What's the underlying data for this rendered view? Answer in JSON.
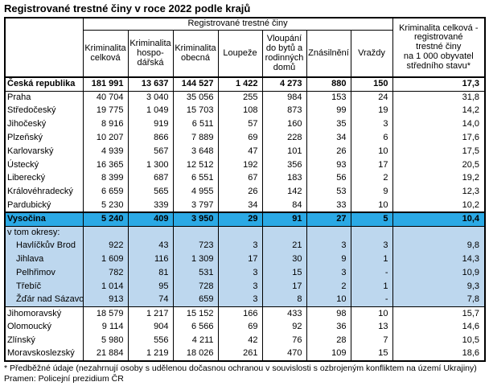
{
  "title": "Registrované trestné činy v roce 2022 podle krajů",
  "colors": {
    "highlight_row": "#2BA9E5",
    "district_rows": "#BDD7EE",
    "border": "#000000"
  },
  "table": {
    "group_header": "Registrované trestné činy",
    "sub_headers": [
      "Kriminalita\ncelková",
      "Kriminalita\nhospo-\ndářská",
      "Kriminalita\nobecná",
      "Loupeže",
      "Vloupání\ndo bytů a\nrodinných\ndomů",
      "Znásilnění",
      "Vraždy"
    ],
    "rate_header": "Kriminalita celková -\nregistrované\ntrestné činy\nna 1 000 obyvatel\nstředního stavu*",
    "rows": [
      {
        "label": "Česká republika",
        "style": "total",
        "values": [
          "181 991",
          "13 637",
          "144 527",
          "1 422",
          "4 273",
          "880",
          "150",
          "17,3"
        ]
      },
      {
        "label": "Praha",
        "style": "region",
        "values": [
          "40 704",
          "3 040",
          "35 056",
          "255",
          "984",
          "153",
          "24",
          "31,8"
        ]
      },
      {
        "label": "Středočeský",
        "style": "region",
        "values": [
          "19 775",
          "1 049",
          "15 703",
          "108",
          "873",
          "99",
          "19",
          "14,2"
        ]
      },
      {
        "label": "Jihočeský",
        "style": "region",
        "values": [
          "8 916",
          "919",
          "6 511",
          "57",
          "160",
          "35",
          "3",
          "14,0"
        ]
      },
      {
        "label": "Plzeňský",
        "style": "region",
        "values": [
          "10 207",
          "866",
          "7 889",
          "69",
          "228",
          "34",
          "6",
          "17,6"
        ]
      },
      {
        "label": "Karlovarský",
        "style": "region",
        "values": [
          "4 939",
          "567",
          "3 648",
          "47",
          "101",
          "26",
          "10",
          "17,5"
        ]
      },
      {
        "label": "Ústecký",
        "style": "region",
        "values": [
          "16 365",
          "1 300",
          "12 512",
          "192",
          "356",
          "93",
          "17",
          "20,5"
        ]
      },
      {
        "label": "Liberecký",
        "style": "region",
        "values": [
          "8 399",
          "687",
          "6 551",
          "67",
          "183",
          "56",
          "2",
          "19,2"
        ]
      },
      {
        "label": "Královéhradecký",
        "style": "region",
        "values": [
          "6 659",
          "565",
          "4 955",
          "26",
          "142",
          "53",
          "9",
          "12,3"
        ]
      },
      {
        "label": "Pardubický",
        "style": "region",
        "values": [
          "5 230",
          "339",
          "3 797",
          "34",
          "84",
          "33",
          "10",
          "10,2"
        ]
      },
      {
        "label": "Vysočina",
        "style": "highlight",
        "values": [
          "5 240",
          "409",
          "3 950",
          "29",
          "91",
          "27",
          "5",
          "10,4"
        ]
      },
      {
        "label": "v tom okresy:",
        "style": "grouplabel",
        "values": [
          "",
          "",
          "",
          "",
          "",
          "",
          "",
          ""
        ]
      },
      {
        "label": "Havlíčkův Brod",
        "style": "district",
        "values": [
          "922",
          "43",
          "723",
          "3",
          "21",
          "3",
          "3",
          "9,8"
        ]
      },
      {
        "label": "Jihlava",
        "style": "district",
        "values": [
          "1 609",
          "116",
          "1 309",
          "17",
          "30",
          "9",
          "1",
          "14,3"
        ]
      },
      {
        "label": "Pelhřimov",
        "style": "district",
        "values": [
          "782",
          "81",
          "531",
          "3",
          "15",
          "3",
          "-",
          "10,9"
        ]
      },
      {
        "label": "Třebíč",
        "style": "district",
        "values": [
          "1 014",
          "95",
          "728",
          "3",
          "17",
          "2",
          "1",
          "9,3"
        ]
      },
      {
        "label": "Žďár nad Sázavou",
        "style": "district-last",
        "values": [
          "913",
          "74",
          "659",
          "3",
          "8",
          "10",
          "-",
          "7,8"
        ]
      },
      {
        "label": "Jihomoravský",
        "style": "region",
        "values": [
          "18 579",
          "1 217",
          "15 152",
          "166",
          "433",
          "98",
          "10",
          "15,7"
        ]
      },
      {
        "label": "Olomoucký",
        "style": "region",
        "values": [
          "9 114",
          "904",
          "6 566",
          "69",
          "92",
          "36",
          "13",
          "14,6"
        ]
      },
      {
        "label": "Zlínský",
        "style": "region",
        "values": [
          "5 980",
          "556",
          "4 211",
          "42",
          "76",
          "28",
          "7",
          "10,5"
        ]
      },
      {
        "label": "Moravskoslezský",
        "style": "region",
        "values": [
          "21 884",
          "1 219",
          "18 026",
          "261",
          "470",
          "109",
          "15",
          "18,6"
        ]
      }
    ]
  },
  "footnotes": [
    "* Předběžné údaje (nezahrnují osoby s udělenou dočasnou ochranou v souvislosti s ozbrojeným konfliktem na území Ukrajiny)",
    "Pramen: Policejní prezidium ČR"
  ]
}
